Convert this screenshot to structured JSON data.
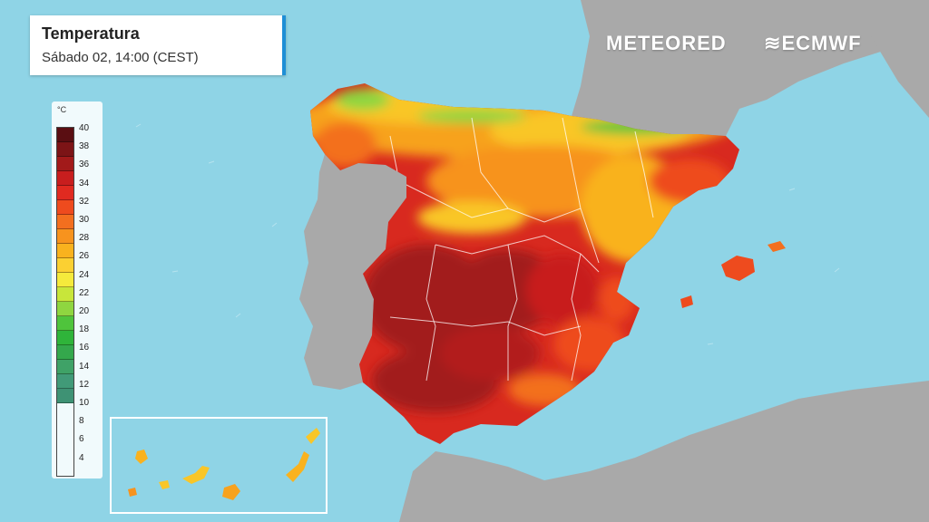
{
  "title": {
    "main": "Temperatura",
    "subtitle": "Sábado 02, 14:00 (CEST)"
  },
  "brand": {
    "logo_left": "METEORED",
    "logo_right": "ECMWF"
  },
  "legend": {
    "unit": "°C",
    "ticks": [
      "40",
      "38",
      "36",
      "34",
      "32",
      "30",
      "28",
      "26",
      "24",
      "22",
      "20",
      "18",
      "16",
      "14",
      "12",
      "10",
      "8",
      "6",
      "4"
    ],
    "colors": [
      "#5a0e12",
      "#7c1416",
      "#a21a1a",
      "#c81e1e",
      "#e02a20",
      "#ee4b1e",
      "#f36f1f",
      "#f7931e",
      "#f9b21e",
      "#fbd032",
      "#f5ea3c",
      "#c8e63a",
      "#8fd640",
      "#4fc43c",
      "#2fb43a",
      "#34a84c",
      "#3fa267",
      "#419a78",
      "#3e9274"
    ]
  },
  "colors": {
    "sea": "#8fd4e6",
    "land": "#a9a9a9",
    "accent": "#1f8fd6"
  }
}
